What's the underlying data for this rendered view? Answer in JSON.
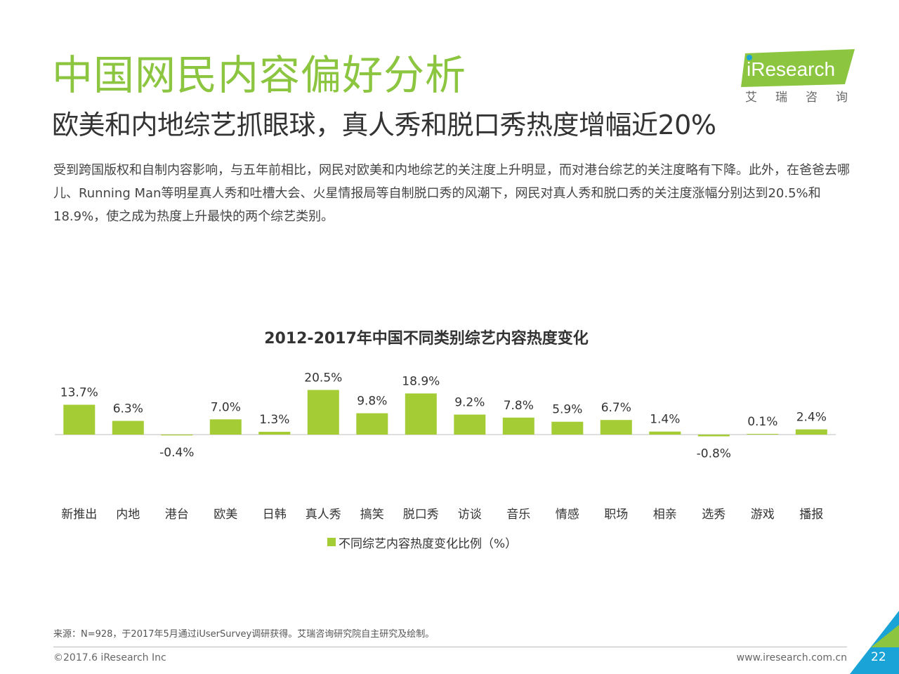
{
  "header": {
    "title": "中国网民内容偏好分析",
    "subtitle": "欧美和内地综艺抓眼球，真人秀和脱口秀热度增幅近20%",
    "body": "受到跨国版权和自制内容影响，与五年前相比，网民对欧美和内地综艺的关注度上升明显，而对港台综艺的关注度略有下降。此外，在爸爸去哪儿、Running Man等明星真人秀和吐槽大会、火星情报局等自制脱口秀的风潮下，网民对真人秀和脱口秀的关注度涨幅分别达到20.5%和18.9%，使之成为热度上升最快的两个综艺类别。"
  },
  "logo": {
    "name": "iResearch",
    "subtitle": "艾瑞咨询",
    "color": "#8cc540"
  },
  "chart_data": {
    "type": "bar",
    "title": "2012-2017年中国不同类别综艺内容热度变化",
    "categories": [
      "新推出",
      "内地",
      "港台",
      "欧美",
      "日韩",
      "真人秀",
      "搞笑",
      "脱口秀",
      "访谈",
      "音乐",
      "情感",
      "职场",
      "相亲",
      "选秀",
      "游戏",
      "播报"
    ],
    "series": [
      {
        "name": "不同综艺内容热度变化比例（%）",
        "values": [
          13.7,
          6.3,
          -0.4,
          7.0,
          1.3,
          20.5,
          9.8,
          18.9,
          9.2,
          7.8,
          5.9,
          6.7,
          1.4,
          -0.8,
          0.1,
          2.4
        ]
      }
    ],
    "value_labels": [
      "13.7%",
      "6.3%",
      "-0.4%",
      "7.0%",
      "1.3%",
      "20.5%",
      "9.8%",
      "18.9%",
      "9.2%",
      "7.8%",
      "5.9%",
      "6.7%",
      "1.4%",
      "-0.8%",
      "0.1%",
      "2.4%"
    ],
    "xlabel": "",
    "ylabel": "",
    "grid": false,
    "legend_position": "bottom",
    "bar_color": "#a4cc35"
  },
  "footer": {
    "source": "来源：N=928，于2017年5月通过iUserSurvey调研获得。艾瑞咨询研究院自主研究及绘制。",
    "copyright": "©2017.6 iResearch Inc",
    "website": "www.iresearch.com.cn",
    "page_number": "22",
    "accent_color": "#19a3d6"
  }
}
